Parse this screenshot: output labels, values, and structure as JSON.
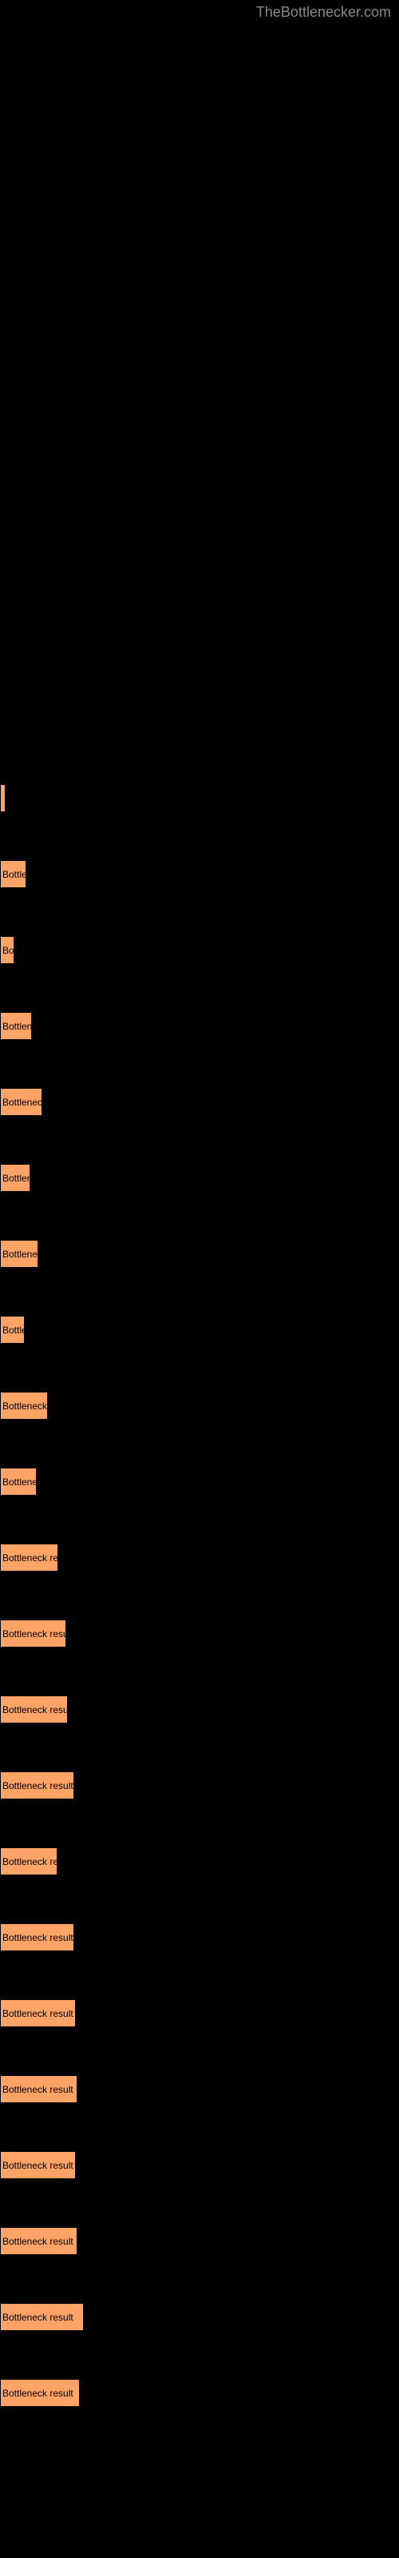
{
  "header": {
    "site_name": "TheBottlenecker.com"
  },
  "chart": {
    "type": "bar",
    "bars": [
      {
        "label": "",
        "width": 7
      },
      {
        "label": "Bottle",
        "width": 33
      },
      {
        "label": "Bo",
        "width": 18
      },
      {
        "label": "Bottlene",
        "width": 40
      },
      {
        "label": "Bottleneck",
        "width": 53
      },
      {
        "label": "Bottlen",
        "width": 38
      },
      {
        "label": "Bottlenec",
        "width": 48
      },
      {
        "label": "Bottle",
        "width": 31
      },
      {
        "label": "Bottleneck r",
        "width": 60
      },
      {
        "label": "Bottlene",
        "width": 46
      },
      {
        "label": "Bottleneck resu",
        "width": 73
      },
      {
        "label": "Bottleneck result",
        "width": 83
      },
      {
        "label": "Bottleneck result",
        "width": 85
      },
      {
        "label": "Bottleneck result",
        "width": 93
      },
      {
        "label": "Bottleneck res",
        "width": 72
      },
      {
        "label": "Bottleneck result",
        "width": 93
      },
      {
        "label": "Bottleneck result",
        "width": 95
      },
      {
        "label": "Bottleneck result",
        "width": 97
      },
      {
        "label": "Bottleneck result",
        "width": 95
      },
      {
        "label": "Bottleneck result",
        "width": 97
      },
      {
        "label": "Bottleneck result",
        "width": 105
      },
      {
        "label": "Bottleneck result",
        "width": 100
      }
    ],
    "bar_color": "#ffa366",
    "bar_border_color": "#000000",
    "background_color": "#000000",
    "label_fontsize": 12,
    "label_color": "#000000"
  }
}
